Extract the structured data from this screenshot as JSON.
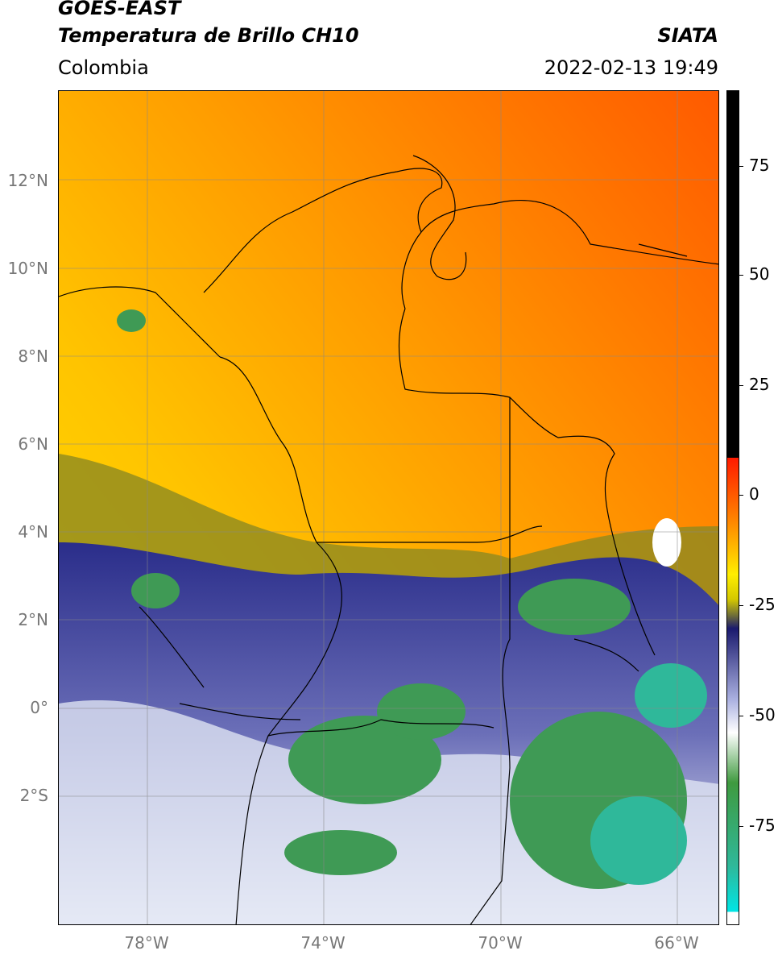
{
  "header": {
    "satellite": "GOES-EAST",
    "product": "Temperatura de Brillo CH10",
    "region": "Colombia",
    "agency": "SIATA",
    "datetime": "2022-02-13 19:49"
  },
  "map": {
    "lat_labels": [
      "12°N",
      "10°N",
      "8°N",
      "6°N",
      "4°N",
      "2°N",
      "0°",
      "2°S"
    ],
    "lon_labels": [
      "78°W",
      "74°W",
      "70°W",
      "66°W"
    ]
  },
  "colorbar": {
    "labels": [
      "75",
      "50",
      "25",
      "0",
      "-25",
      "-50",
      "-75"
    ]
  }
}
